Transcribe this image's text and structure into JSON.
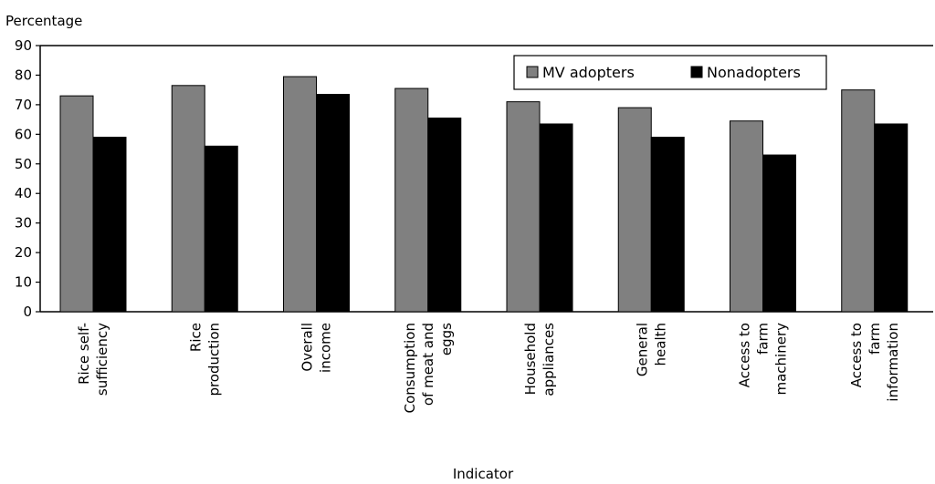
{
  "chart_data": {
    "type": "bar",
    "title": "",
    "ylabel": "Percentage",
    "xlabel": "Indicator",
    "ylim": [
      0,
      90
    ],
    "yticks": [
      0,
      10,
      20,
      30,
      40,
      50,
      60,
      70,
      80,
      90
    ],
    "categories": [
      [
        "Rice self-",
        "sufficiency"
      ],
      [
        "Rice",
        "production"
      ],
      [
        "Overall",
        "income"
      ],
      [
        "Consumption",
        "of meat and",
        "eggs"
      ],
      [
        "Household",
        "appliances"
      ],
      [
        "General",
        "health"
      ],
      [
        "Access to",
        "farm",
        "machinery"
      ],
      [
        "Access to",
        "farm",
        "information"
      ]
    ],
    "series": [
      {
        "name": "MV adopters",
        "color": "#808080",
        "values": [
          73,
          76.5,
          79.5,
          75.5,
          71,
          69,
          64.5,
          75
        ]
      },
      {
        "name": "Nonadopters",
        "color": "#000000",
        "values": [
          59,
          56,
          73.5,
          65.5,
          63.5,
          59,
          53,
          63.5
        ]
      }
    ],
    "legend_position": "top-right"
  }
}
